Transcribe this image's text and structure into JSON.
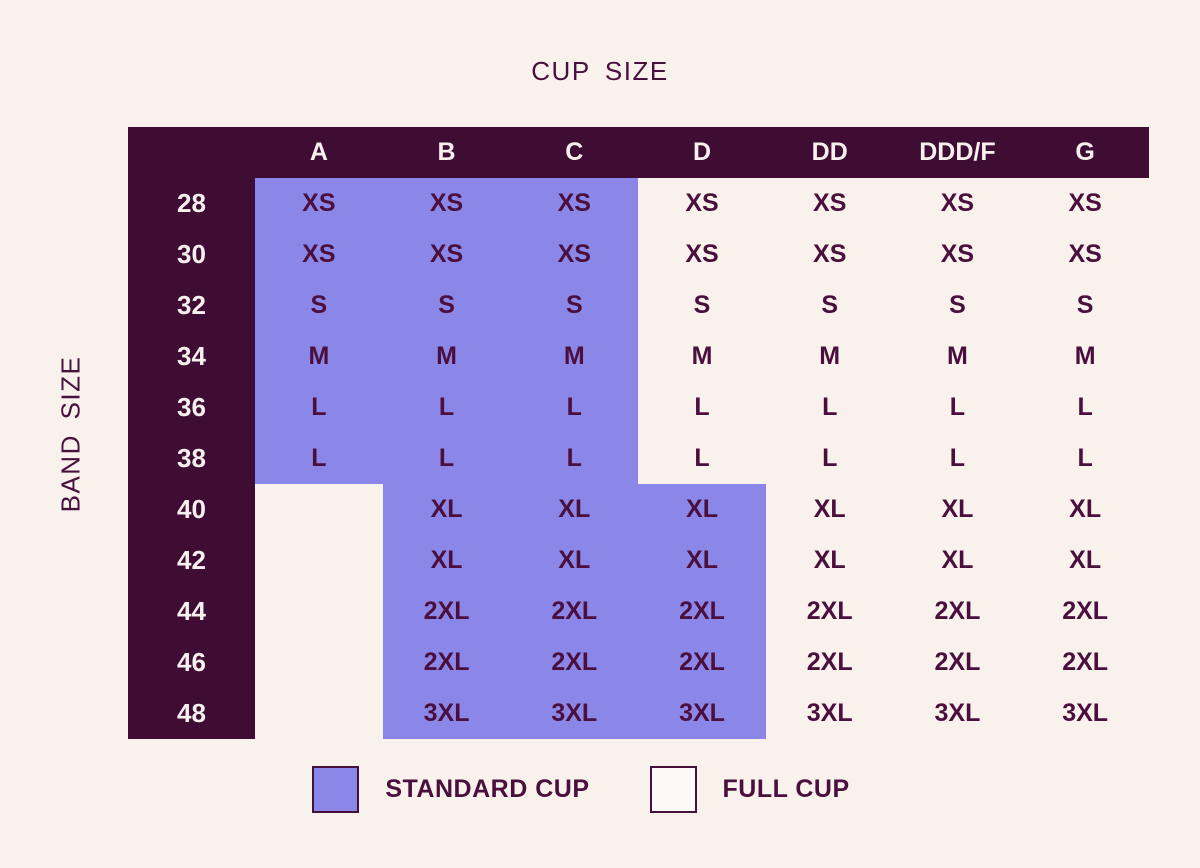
{
  "title": "CUP SIZE",
  "band_axis_label": "BAND SIZE",
  "colors": {
    "background": "#f9f1ec",
    "header_bg": "#3f0c33",
    "header_text": "#f7f0ee",
    "standard_bg": "#8b87e8",
    "cell_text": "#4b0f3e",
    "title_text": "#48103c",
    "swatch_border": "#46103a",
    "full_swatch": "#fdf9f6"
  },
  "chart_data": {
    "type": "table",
    "title": "CUP SIZE",
    "row_axis_label": "BAND SIZE",
    "columns": [
      "A",
      "B",
      "C",
      "D",
      "DD",
      "DDD/F",
      "G"
    ],
    "rows": [
      {
        "band": "28",
        "values": [
          "XS",
          "XS",
          "XS",
          "XS",
          "XS",
          "XS",
          "XS"
        ],
        "standard_cols": [
          0,
          1,
          2
        ]
      },
      {
        "band": "30",
        "values": [
          "XS",
          "XS",
          "XS",
          "XS",
          "XS",
          "XS",
          "XS"
        ],
        "standard_cols": [
          0,
          1,
          2
        ]
      },
      {
        "band": "32",
        "values": [
          "S",
          "S",
          "S",
          "S",
          "S",
          "S",
          "S"
        ],
        "standard_cols": [
          0,
          1,
          2
        ]
      },
      {
        "band": "34",
        "values": [
          "M",
          "M",
          "M",
          "M",
          "M",
          "M",
          "M"
        ],
        "standard_cols": [
          0,
          1,
          2
        ]
      },
      {
        "band": "36",
        "values": [
          "L",
          "L",
          "L",
          "L",
          "L",
          "L",
          "L"
        ],
        "standard_cols": [
          0,
          1,
          2
        ]
      },
      {
        "band": "38",
        "values": [
          "L",
          "L",
          "L",
          "L",
          "L",
          "L",
          "L"
        ],
        "standard_cols": [
          0,
          1,
          2
        ]
      },
      {
        "band": "40",
        "values": [
          "",
          "XL",
          "XL",
          "XL",
          "XL",
          "XL",
          "XL"
        ],
        "standard_cols": [
          1,
          2,
          3
        ]
      },
      {
        "band": "42",
        "values": [
          "",
          "XL",
          "XL",
          "XL",
          "XL",
          "XL",
          "XL"
        ],
        "standard_cols": [
          1,
          2,
          3
        ]
      },
      {
        "band": "44",
        "values": [
          "",
          "2XL",
          "2XL",
          "2XL",
          "2XL",
          "2XL",
          "2XL"
        ],
        "standard_cols": [
          1,
          2,
          3
        ]
      },
      {
        "band": "46",
        "values": [
          "",
          "2XL",
          "2XL",
          "2XL",
          "2XL",
          "2XL",
          "2XL"
        ],
        "standard_cols": [
          1,
          2,
          3
        ]
      },
      {
        "band": "48",
        "values": [
          "",
          "3XL",
          "3XL",
          "3XL",
          "3XL",
          "3XL",
          "3XL"
        ],
        "standard_cols": [
          1,
          2,
          3
        ]
      }
    ],
    "legend": [
      {
        "label": "STANDARD CUP",
        "swatch": "standard"
      },
      {
        "label": "FULL CUP",
        "swatch": "full"
      }
    ]
  }
}
